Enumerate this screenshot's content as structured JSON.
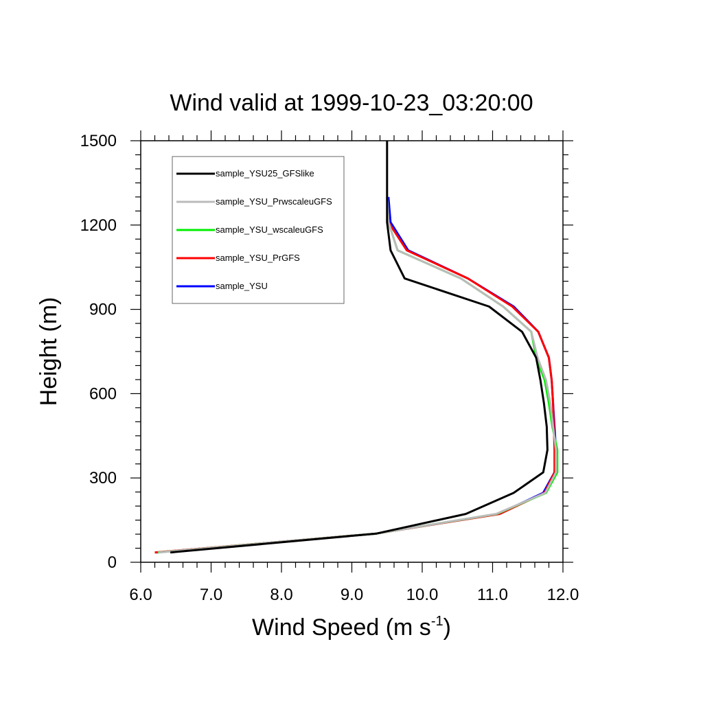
{
  "chart_data": {
    "type": "line",
    "title": "Wind valid at 1999-10-23_03:20:00",
    "xlabel": "Wind Speed (m s",
    "xlabel_sup": "-1",
    "xlabel_close": ")",
    "ylabel": "Height (m)",
    "xlim": [
      6.0,
      12.0
    ],
    "ylim": [
      0,
      1500
    ],
    "x_ticks": [
      "6.0",
      "7.0",
      "8.0",
      "9.0",
      "10.0",
      "11.0",
      "12.0"
    ],
    "y_ticks": [
      "0",
      "300",
      "600",
      "900",
      "1200",
      "1500"
    ],
    "legend_position": "top-left",
    "series": [
      {
        "name": "sample_YSU",
        "color": "#0000ff",
        "points": [
          [
            6.22,
            35
          ],
          [
            9.35,
            102
          ],
          [
            11.08,
            172
          ],
          [
            11.72,
            247
          ],
          [
            11.88,
            320
          ],
          [
            11.9,
            400
          ],
          [
            11.88,
            482
          ],
          [
            11.86,
            566
          ],
          [
            11.84,
            648
          ],
          [
            11.8,
            728
          ],
          [
            11.65,
            820
          ],
          [
            11.3,
            910
          ],
          [
            10.65,
            1010
          ],
          [
            9.8,
            1110
          ],
          [
            9.55,
            1210
          ],
          [
            9.52,
            1300
          ]
        ]
      },
      {
        "name": "sample_YSU_PrGFS",
        "color": "#ff0000",
        "points": [
          [
            6.2,
            35
          ],
          [
            9.35,
            102
          ],
          [
            11.1,
            172
          ],
          [
            11.74,
            247
          ],
          [
            11.88,
            320
          ],
          [
            11.88,
            400
          ],
          [
            11.87,
            482
          ],
          [
            11.86,
            566
          ],
          [
            11.84,
            648
          ],
          [
            11.8,
            728
          ],
          [
            11.65,
            820
          ],
          [
            11.28,
            910
          ],
          [
            10.65,
            1010
          ],
          [
            9.78,
            1110
          ],
          [
            9.52,
            1210
          ],
          [
            9.5,
            1295
          ]
        ]
      },
      {
        "name": "sample_YSU_wscaleuGFS",
        "color": "#00ee00",
        "points": [
          [
            6.24,
            35
          ],
          [
            9.35,
            102
          ],
          [
            11.06,
            172
          ],
          [
            11.76,
            247
          ],
          [
            11.92,
            320
          ],
          [
            11.92,
            400
          ],
          [
            11.85,
            482
          ],
          [
            11.8,
            566
          ],
          [
            11.74,
            648
          ],
          [
            11.62,
            728
          ],
          [
            11.55,
            820
          ],
          [
            11.15,
            910
          ],
          [
            10.55,
            1010
          ],
          [
            9.65,
            1110
          ],
          [
            9.52,
            1210
          ],
          [
            9.5,
            1300
          ]
        ]
      },
      {
        "name": "sample_YSU_PrwscaleuGFS",
        "color": "#bbbbbb",
        "points": [
          [
            6.25,
            35
          ],
          [
            9.35,
            102
          ],
          [
            11.05,
            172
          ],
          [
            11.75,
            247
          ],
          [
            11.9,
            320
          ],
          [
            11.9,
            400
          ],
          [
            11.86,
            482
          ],
          [
            11.82,
            566
          ],
          [
            11.76,
            648
          ],
          [
            11.64,
            728
          ],
          [
            11.55,
            820
          ],
          [
            11.15,
            910
          ],
          [
            10.55,
            1010
          ],
          [
            9.65,
            1110
          ],
          [
            9.52,
            1210
          ],
          [
            9.5,
            1300
          ]
        ]
      },
      {
        "name": "sample_YSU25_GFSlike",
        "color": "#000000",
        "points": [
          [
            6.42,
            35
          ],
          [
            9.35,
            102
          ],
          [
            10.62,
            172
          ],
          [
            11.3,
            247
          ],
          [
            11.72,
            320
          ],
          [
            11.78,
            400
          ],
          [
            11.77,
            482
          ],
          [
            11.73,
            566
          ],
          [
            11.68,
            648
          ],
          [
            11.62,
            728
          ],
          [
            11.42,
            820
          ],
          [
            10.95,
            910
          ],
          [
            9.75,
            1010
          ],
          [
            9.55,
            1110
          ],
          [
            9.5,
            1210
          ],
          [
            9.5,
            1300
          ],
          [
            9.5,
            1500
          ]
        ]
      }
    ],
    "legend_order": [
      "sample_YSU25_GFSlike",
      "sample_YSU_PrwscaleuGFS",
      "sample_YSU_wscaleuGFS",
      "sample_YSU_PrGFS",
      "sample_YSU"
    ]
  }
}
